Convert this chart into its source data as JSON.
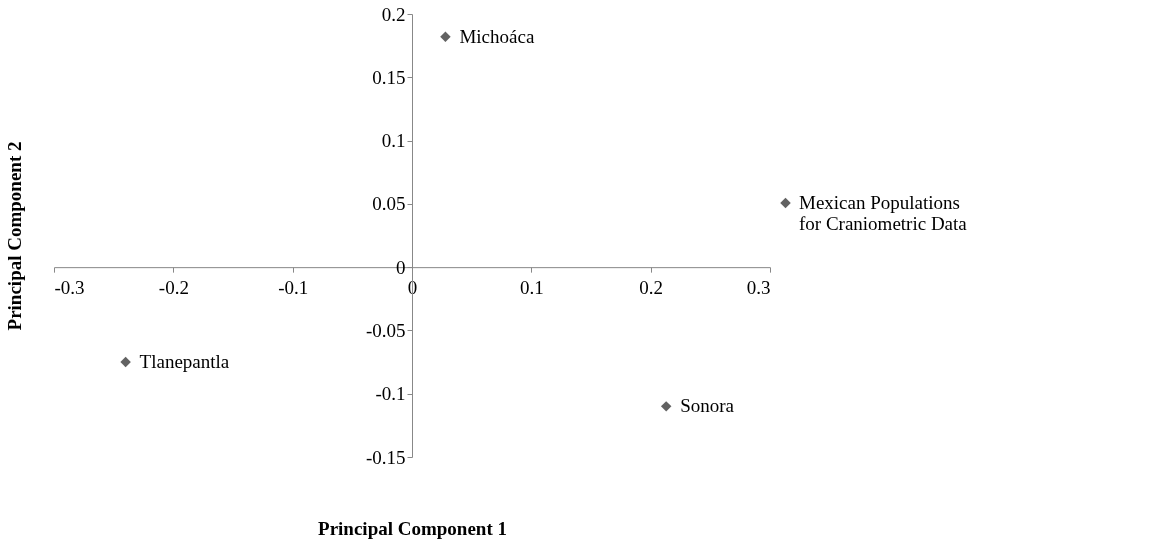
{
  "chart_data": {
    "type": "scatter",
    "xlabel": "Principal Component 1",
    "ylabel": "Principal Component 2",
    "x": [
      0.028,
      -0.24,
      0.213
    ],
    "series": [
      {
        "name": "Mexican Populations for Craniometric Data",
        "color": "#626262",
        "values": [
          0.182,
          -0.075,
          -0.11
        ]
      }
    ],
    "annotations": [
      {
        "text": "Michoáca",
        "x": 0.028,
        "y": 0.182
      },
      {
        "text": "Tlanepantla",
        "x": -0.24,
        "y": -0.075
      },
      {
        "text": "Sonora",
        "x": 0.213,
        "y": -0.11
      }
    ],
    "xlim": [
      -0.3,
      0.3
    ],
    "xticks": [
      -0.3,
      -0.2,
      -0.1,
      0,
      0.1,
      0.2,
      0.3
    ],
    "ylim": [
      -0.15,
      0.2
    ],
    "yticks": [
      -0.15,
      -0.1,
      -0.05,
      0,
      0.05,
      0.1,
      0.15,
      0.2
    ],
    "marker": "diamond",
    "grid": false,
    "legend": "right"
  }
}
